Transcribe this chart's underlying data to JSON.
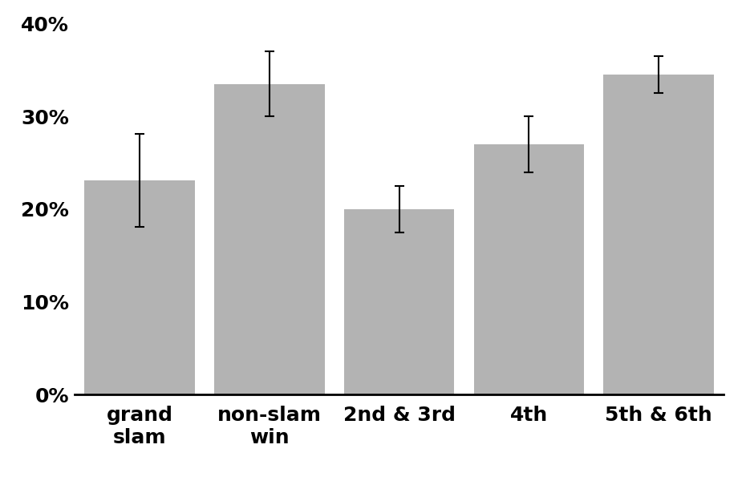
{
  "categories": [
    "grand\nslam",
    "non-slam\nwin",
    "2nd & 3rd",
    "4th",
    "5th & 6th"
  ],
  "values": [
    0.231,
    0.335,
    0.2,
    0.27,
    0.345
  ],
  "errors": [
    0.05,
    0.035,
    0.025,
    0.03,
    0.02
  ],
  "bar_color": "#b3b3b3",
  "bar_edgecolor": "#b3b3b3",
  "error_color": "black",
  "ylim": [
    0,
    0.41
  ],
  "yticks": [
    0.0,
    0.1,
    0.2,
    0.3,
    0.4
  ],
  "ytick_labels": [
    "0%",
    "10%",
    "20%",
    "30%",
    "40%"
  ],
  "background_color": "#ffffff",
  "capsize": 4,
  "bar_width": 0.85
}
